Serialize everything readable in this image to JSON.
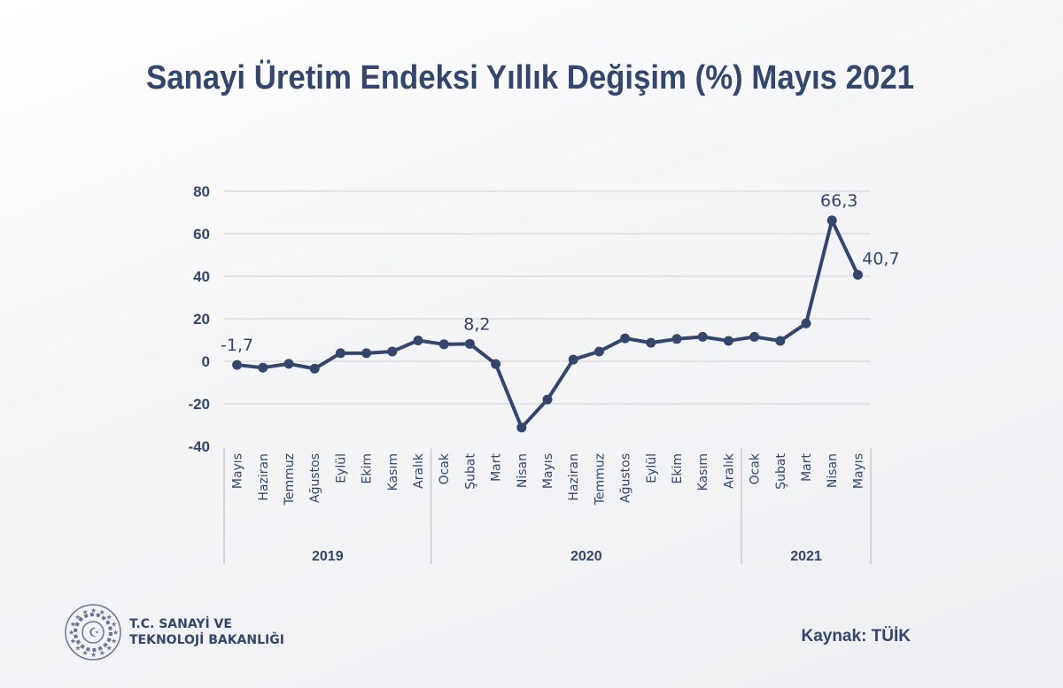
{
  "title": "Sanayi Üretim Endeksi Yıllık Değişim (%) Mayıs 2021",
  "source": "Kaynak: TÜİK",
  "logo": {
    "line1": "T.C. SANAYİ VE",
    "line2": "TEKNOLOJİ BAKANLIĞI"
  },
  "colors": {
    "series": "#34466b",
    "grid": "#dcdde0"
  },
  "chart_data": {
    "type": "line",
    "title": "Sanayi Üretim Endeksi Yıllık Değişim (%) Mayıs 2021",
    "categories": [
      "Mayıs",
      "Haziran",
      "Temmuz",
      "Ağustos",
      "Eylül",
      "Ekim",
      "Kasım",
      "Aralık",
      "Ocak",
      "Şubat",
      "Mart",
      "Nisan",
      "Mayıs",
      "Haziran",
      "Temmuz",
      "Ağustos",
      "Eylül",
      "Ekim",
      "Kasım",
      "Aralık",
      "Ocak",
      "Şubat",
      "Mart",
      "Nisan",
      "Mayıs"
    ],
    "groups": [
      {
        "label": "2019",
        "count": 8
      },
      {
        "label": "2020",
        "count": 12
      },
      {
        "label": "2021",
        "count": 5
      }
    ],
    "values": [
      -1.7,
      -3,
      -1.2,
      -3.5,
      3.8,
      3.8,
      4.6,
      9.8,
      8,
      8.2,
      -1.3,
      -31.2,
      -18,
      0.8,
      4.6,
      10.8,
      8.7,
      10.5,
      11.5,
      9.6,
      11.5,
      9.6,
      17.8,
      66.3,
      40.7
    ],
    "data_labels": [
      {
        "index": 0,
        "text": "-1,7"
      },
      {
        "index": 9,
        "text": "8,2"
      },
      {
        "index": 23,
        "text": "66,3"
      },
      {
        "index": 24,
        "text": "40,7"
      }
    ],
    "yticks": [
      "80",
      "60",
      "40",
      "20",
      "0",
      "-20",
      "-40"
    ],
    "ylim": [
      -40,
      80
    ],
    "grid": true,
    "legend": "none",
    "xlabel": "",
    "ylabel": ""
  }
}
